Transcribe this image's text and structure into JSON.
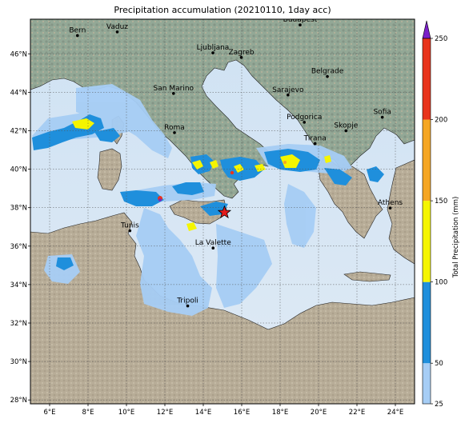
{
  "title": "Precipitation accumulation (20210110, 1day acc)",
  "map": {
    "lon_range": [
      5,
      25
    ],
    "lat_range": [
      27.8,
      47.8
    ],
    "lon_ticks": [
      {
        "v": 6,
        "label": "6°E"
      },
      {
        "v": 8,
        "label": "8°E"
      },
      {
        "v": 10,
        "label": "10°E"
      },
      {
        "v": 12,
        "label": "12°E"
      },
      {
        "v": 14,
        "label": "14°E"
      },
      {
        "v": 16,
        "label": "16°E"
      },
      {
        "v": 18,
        "label": "18°E"
      },
      {
        "v": 20,
        "label": "20°E"
      },
      {
        "v": 22,
        "label": "22°E"
      },
      {
        "v": 24,
        "label": "24°E"
      }
    ],
    "lat_ticks": [
      {
        "v": 28,
        "label": "28°N"
      },
      {
        "v": 30,
        "label": "30°N"
      },
      {
        "v": 32,
        "label": "32°N"
      },
      {
        "v": 34,
        "label": "34°N"
      },
      {
        "v": 36,
        "label": "36°N"
      },
      {
        "v": 38,
        "label": "38°N"
      },
      {
        "v": 40,
        "label": "40°N"
      },
      {
        "v": 42,
        "label": "42°N"
      },
      {
        "v": 44,
        "label": "44°N"
      },
      {
        "v": 46,
        "label": "46°N"
      }
    ],
    "cities": [
      {
        "name": "Bern",
        "lon": 7.45,
        "lat": 46.95
      },
      {
        "name": "Vaduz",
        "lon": 9.52,
        "lat": 47.14
      },
      {
        "name": "Budapest",
        "lon": 19.04,
        "lat": 47.5
      },
      {
        "name": "Ljubljana",
        "lon": 14.5,
        "lat": 46.05
      },
      {
        "name": "Zagreb",
        "lon": 15.98,
        "lat": 45.81
      },
      {
        "name": "Belgrade",
        "lon": 20.46,
        "lat": 44.82
      },
      {
        "name": "San Marino",
        "lon": 12.45,
        "lat": 43.94
      },
      {
        "name": "Sarajevo",
        "lon": 18.41,
        "lat": 43.86
      },
      {
        "name": "Sofia",
        "lon": 23.32,
        "lat": 42.7
      },
      {
        "name": "Podgorica",
        "lon": 19.26,
        "lat": 42.44
      },
      {
        "name": "Skopje",
        "lon": 21.43,
        "lat": 42.0
      },
      {
        "name": "Roma",
        "lon": 12.5,
        "lat": 41.9
      },
      {
        "name": "Tirana",
        "lon": 19.82,
        "lat": 41.33
      },
      {
        "name": "Athens",
        "lon": 23.73,
        "lat": 37.98
      },
      {
        "name": "Tunis",
        "lon": 10.18,
        "lat": 36.8
      },
      {
        "name": "La Valette",
        "lon": 14.51,
        "lat": 35.9
      },
      {
        "name": "Tripoli",
        "lon": 13.19,
        "lat": 32.89
      }
    ],
    "event_marker": {
      "lon": 15.1,
      "lat": 37.75,
      "color": "#e31a1c"
    }
  },
  "colorbar": {
    "label": "Total Precipitation (mm)",
    "ticks": [
      25,
      50,
      100,
      150,
      200,
      250
    ],
    "colors": [
      "#a6cdf5",
      "#1f8fdc",
      "#f5f500",
      "#f5a623",
      "#e8341c"
    ],
    "extend_color": "#7b1fc8"
  }
}
